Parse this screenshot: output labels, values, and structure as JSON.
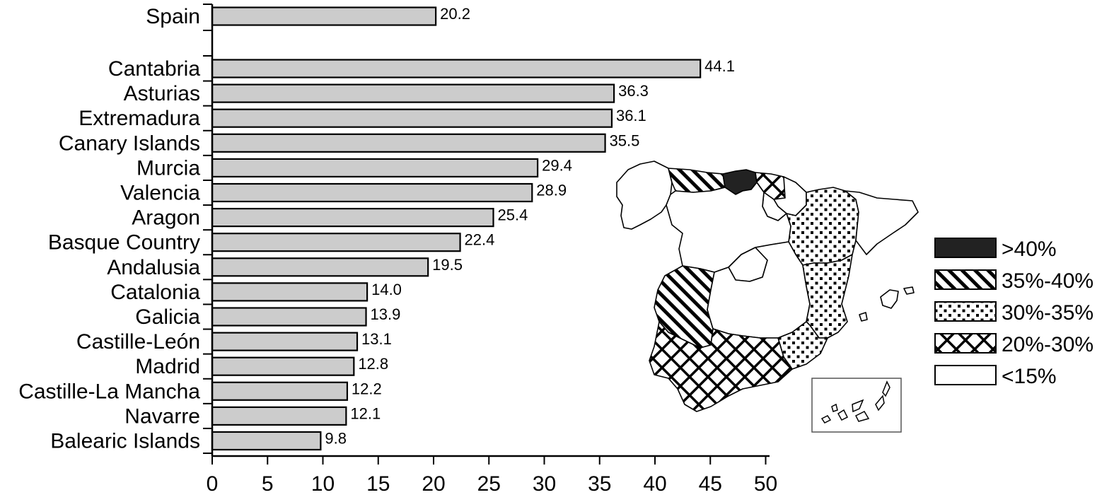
{
  "chart_data": {
    "type": "bar",
    "orientation": "horizontal",
    "title": "",
    "xlabel": "",
    "ylabel": "",
    "xlim": [
      0,
      50
    ],
    "x_ticks": [
      0,
      5,
      10,
      15,
      20,
      25,
      30,
      35,
      40,
      45,
      50
    ],
    "grid": false,
    "bar_color": "#cccccc",
    "categories": [
      "Spain",
      "Cantabria",
      "Asturias",
      "Extremadura",
      "Canary Islands",
      "Murcia",
      "Valencia",
      "Aragon",
      "Basque Country",
      "Andalusia",
      "Catalonia",
      "Galicia",
      "Castille-León",
      "Madrid",
      "Castille-La Mancha",
      "Navarre",
      "Balearic Islands"
    ],
    "values": [
      20.2,
      44.1,
      36.3,
      36.1,
      35.5,
      29.4,
      28.9,
      25.4,
      22.4,
      19.5,
      14.0,
      13.9,
      13.1,
      12.8,
      12.2,
      12.1,
      9.8
    ],
    "value_labels": [
      "20.2",
      "44.1",
      "36.3",
      "36.1",
      "35.5",
      "29.4",
      "28.9",
      "25.4",
      "22.4",
      "19.5",
      "14.0",
      "13.9",
      "13.1",
      "12.8",
      "12.2",
      "12.1",
      "9.8"
    ]
  },
  "map": {
    "legend_placement": "right",
    "legend": [
      {
        "label": ">40%",
        "pattern": "solid"
      },
      {
        "label": "35%-40%",
        "pattern": "diagonal"
      },
      {
        "label": "30%-35%",
        "pattern": "dots"
      },
      {
        "label": "20%-30%",
        "pattern": "zigzag"
      },
      {
        "label": "<15%",
        "pattern": "blank"
      }
    ]
  }
}
